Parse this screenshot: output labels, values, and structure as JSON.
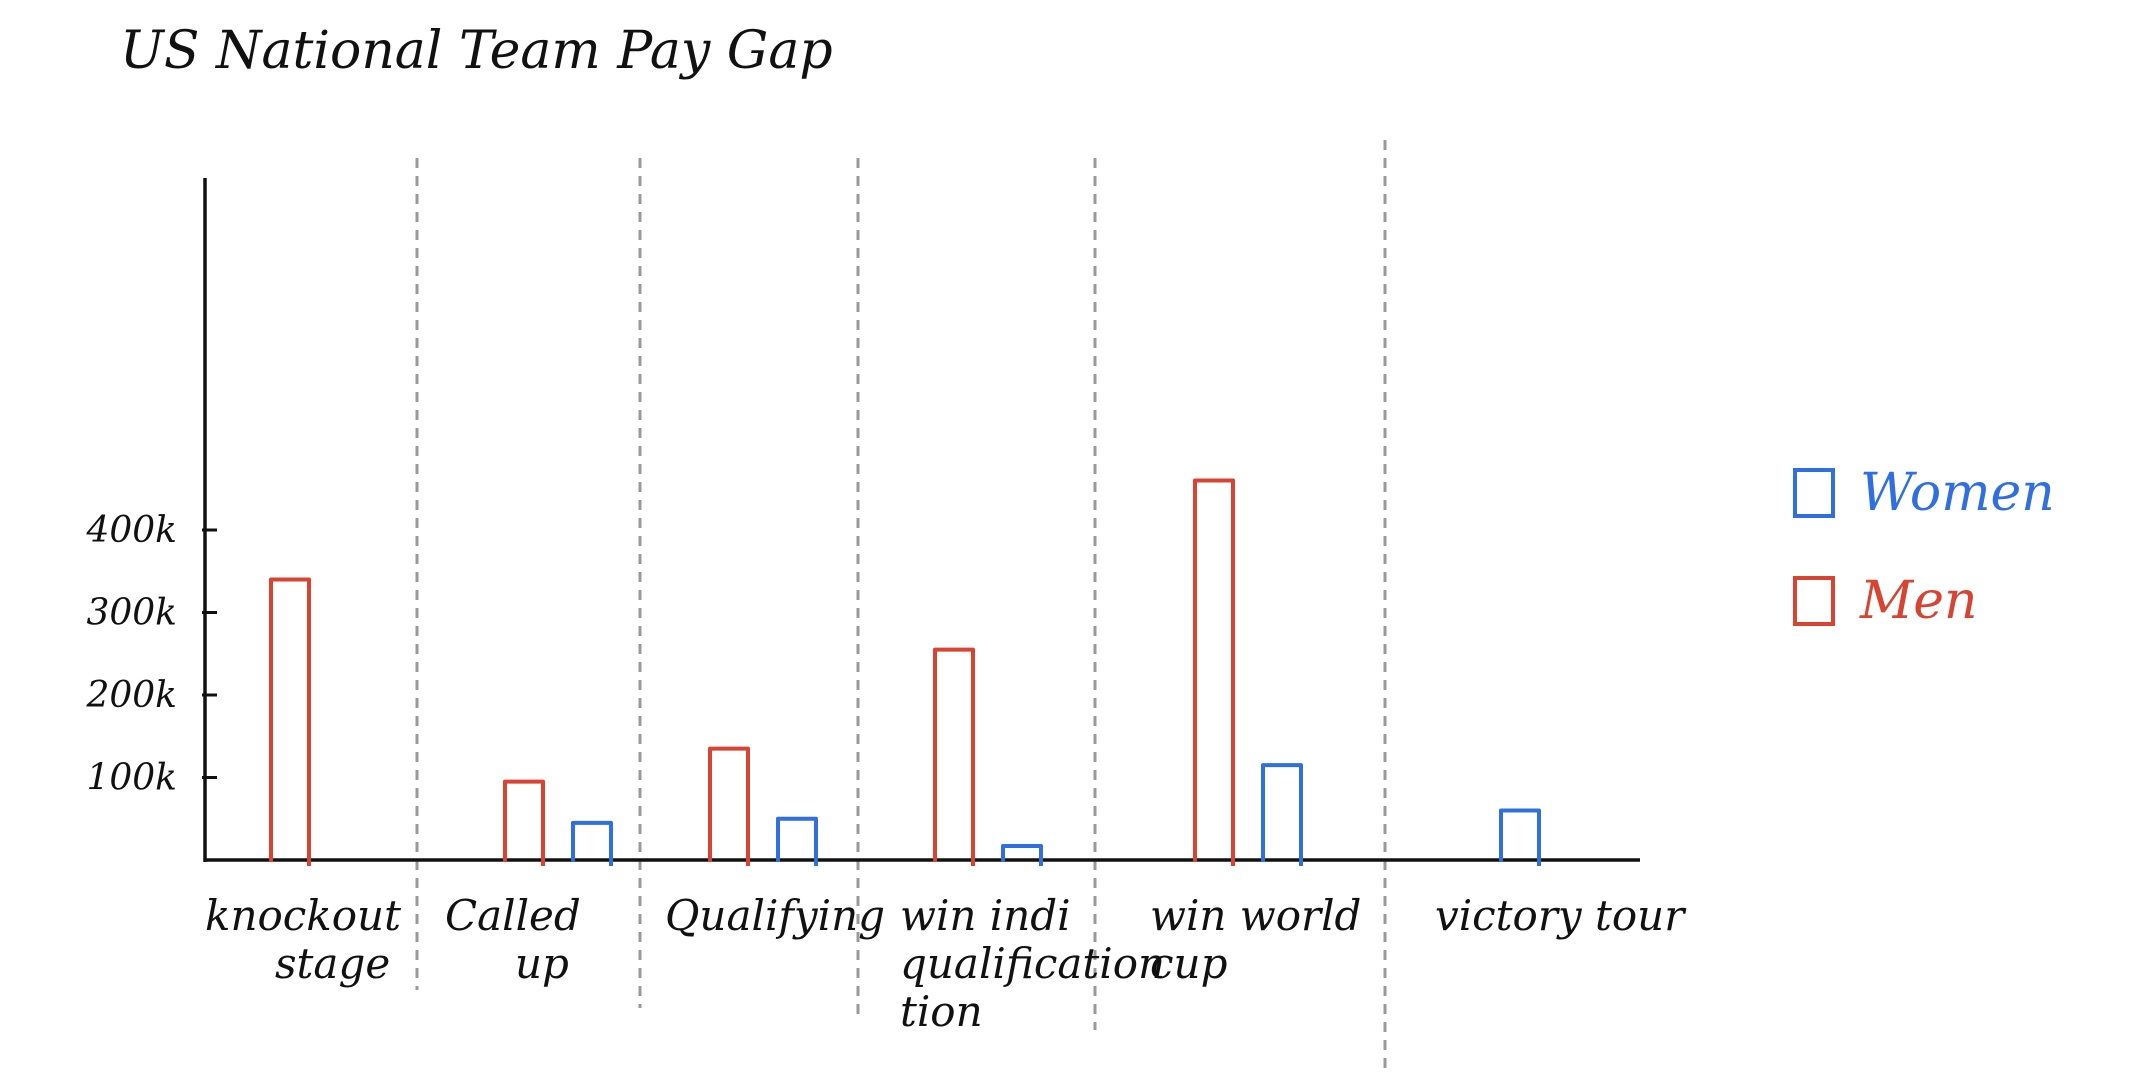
{
  "chart_data": {
    "type": "bar",
    "title": "US National Team Pay Gap",
    "xlabel": "",
    "ylabel": "",
    "ylim": [
      0,
      450
    ],
    "yticks": [
      {
        "value": 100,
        "label": "100k"
      },
      {
        "value": 200,
        "label": "200k"
      },
      {
        "value": 300,
        "label": "300k"
      },
      {
        "value": 400,
        "label": "400k"
      }
    ],
    "categories": [
      [
        "knockout",
        "stage"
      ],
      [
        "Called",
        "up"
      ],
      [
        "Qualifying"
      ],
      [
        "win indi",
        "qualification",
        "tion"
      ],
      [
        "win world",
        "cup"
      ],
      [
        "victory tour"
      ]
    ],
    "series": [
      {
        "name": "Women",
        "color": "#2f6fe0",
        "values": [
          null,
          45,
          50,
          17,
          115,
          60
        ]
      },
      {
        "name": "Men",
        "color": "#d84332",
        "values": [
          340,
          95,
          135,
          255,
          460,
          null
        ]
      }
    ],
    "legend": {
      "position": "right",
      "items": [
        {
          "label": "Women",
          "color": "#2f6fe0"
        },
        {
          "label": "Men",
          "color": "#d84332"
        }
      ]
    },
    "grid": false,
    "separators": "dashed vertical lines between categories"
  }
}
